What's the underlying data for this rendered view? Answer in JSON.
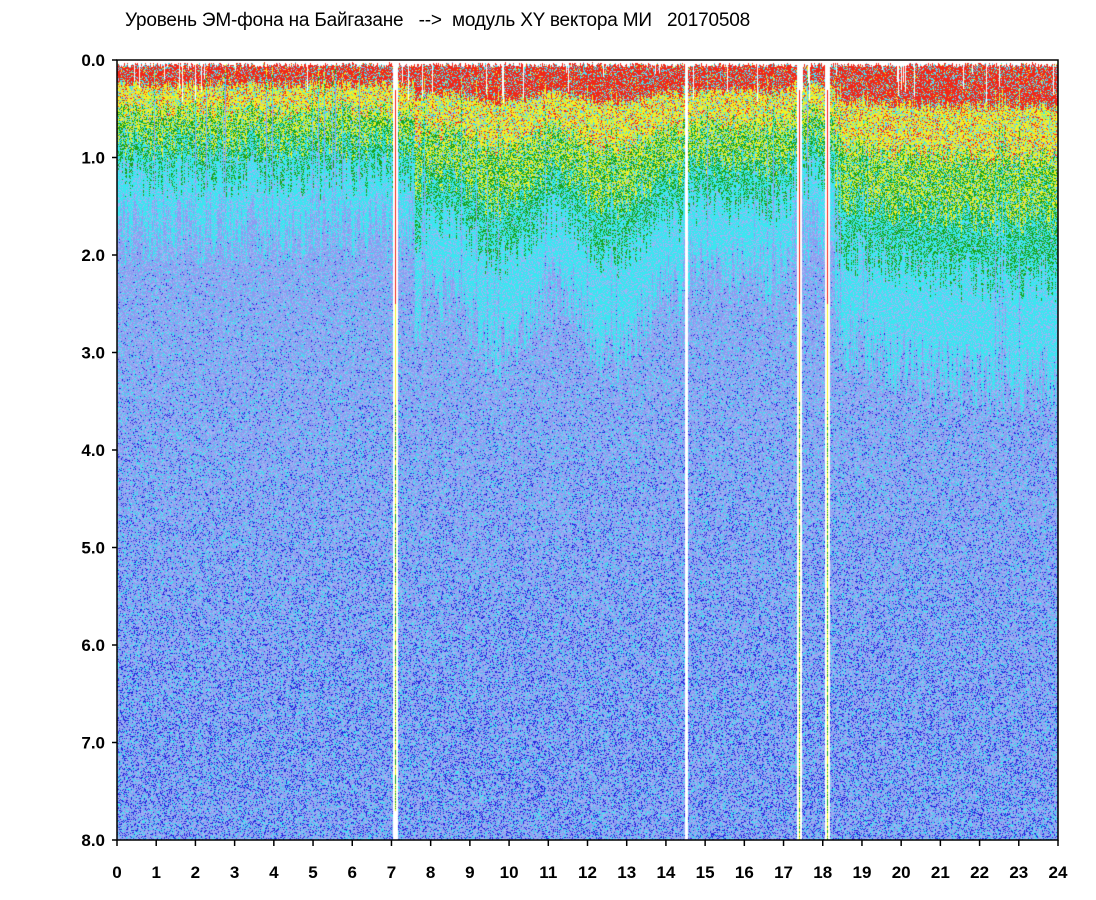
{
  "chart_data": {
    "type": "heatmap",
    "title": "Уровень ЭМ-фона на Байгазане   -->  модуль XY вектора МИ   20170508",
    "xlabel": "",
    "ylabel": "",
    "xlim": [
      0,
      24
    ],
    "ylim": [
      8.0,
      0.0
    ],
    "y_axis_inverted": true,
    "x_ticks": [
      "0",
      "1",
      "2",
      "3",
      "4",
      "5",
      "6",
      "7",
      "8",
      "9",
      "10",
      "11",
      "12",
      "13",
      "14",
      "15",
      "16",
      "17",
      "18",
      "19",
      "20",
      "21",
      "22",
      "23",
      "24"
    ],
    "y_ticks": [
      "0.0",
      "1.0",
      "2.0",
      "3.0",
      "4.0",
      "5.0",
      "6.0",
      "7.0",
      "8.0"
    ],
    "colorscale": [
      "#2222dd",
      "#8c9cf0",
      "#a0b4f4",
      "#3ae6f0",
      "#1aa21a",
      "#f0f028",
      "#f02818"
    ],
    "dense_band_y_range": [
      0.0,
      2.5
    ],
    "gap_hours": [
      14.5
    ],
    "spike_hours": [
      7.1,
      17.4,
      18.1
    ],
    "grid": false,
    "legend": "none"
  }
}
